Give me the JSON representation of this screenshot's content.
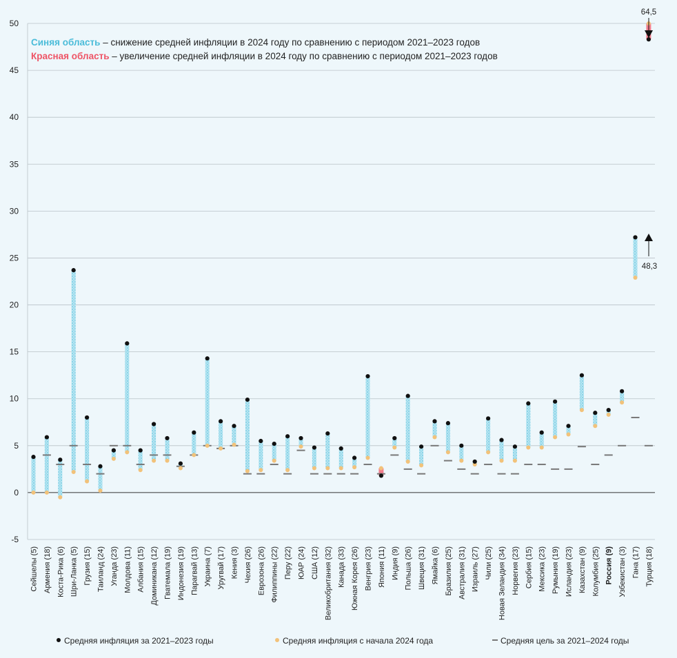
{
  "chart_data": {
    "type": "range-dot",
    "ylim": [
      -5,
      50
    ],
    "yticks": [
      "-5",
      "0",
      "5",
      "10",
      "15",
      "20",
      "25",
      "30",
      "35",
      "40",
      "45",
      "50"
    ],
    "notes": {
      "blue_title": "Синяя область",
      "blue_text": " – снижение средней инфляции в 2024 году по сравнению с периодом 2021–2023 годов",
      "red_title": "Красная область",
      "red_text": " – увеличение средней инфляции в 2024 году по сравнению с периодом 2021–2023 годов"
    },
    "legend": {
      "avg_2021_2023": "Средняя инфляция за 2021–2023 годы",
      "avg_2024": "Средняя инфляция с начала 2024 года",
      "target": "Средняя цель за 2021–2024 годы"
    },
    "annotations": {
      "top_value": "64,5",
      "bottom_value": "48,3"
    },
    "colors": {
      "blue_area": "#9fd9ea",
      "red_area": "#f27e8e",
      "dot_2021_2023": "#111111",
      "dot_2024": "#f2c27a",
      "target": "#777777",
      "background": "#eef7fb",
      "blue_title": "#4bbcd9",
      "red_title": "#ee5466"
    },
    "countries": [
      {
        "label": "Сейшелы (5)",
        "avg_2021_2023": 3.8,
        "avg_2024": 0.0,
        "target": null
      },
      {
        "label": "Армения (18)",
        "avg_2021_2023": 5.9,
        "avg_2024": 0.0,
        "target": 4.0
      },
      {
        "label": "Коста-Рика (6)",
        "avg_2021_2023": 3.5,
        "avg_2024": -0.5,
        "target": 3.0
      },
      {
        "label": "Шри-Ланка (5)",
        "avg_2021_2023": 23.7,
        "avg_2024": 2.2,
        "target": 5.0
      },
      {
        "label": "Грузия (15)",
        "avg_2021_2023": 8.0,
        "avg_2024": 1.2,
        "target": 3.0
      },
      {
        "label": "Таиланд (24)",
        "avg_2021_2023": 2.8,
        "avg_2024": 0.2,
        "target": 2.0
      },
      {
        "label": "Уганда (23)",
        "avg_2021_2023": 4.5,
        "avg_2024": 3.6,
        "target": 5.0
      },
      {
        "label": "Молдова (11)",
        "avg_2021_2023": 15.9,
        "avg_2024": 4.3,
        "target": 5.0
      },
      {
        "label": "Албания (15)",
        "avg_2021_2023": 4.5,
        "avg_2024": 2.4,
        "target": 3.0
      },
      {
        "label": "Доминикана (12)",
        "avg_2021_2023": 7.3,
        "avg_2024": 3.4,
        "target": 4.0
      },
      {
        "label": "Гватемала (19)",
        "avg_2021_2023": 5.8,
        "avg_2024": 3.4,
        "target": 4.0
      },
      {
        "label": "Индонезия (19)",
        "avg_2021_2023": 3.1,
        "avg_2024": 2.6,
        "target": 2.8
      },
      {
        "label": "Парагвай (13)",
        "avg_2021_2023": 6.4,
        "avg_2024": 4.0,
        "target": 4.0
      },
      {
        "label": "Украина (7)",
        "avg_2021_2023": 14.3,
        "avg_2024": 5.0,
        "target": 5.0
      },
      {
        "label": "Уругвай (17)",
        "avg_2021_2023": 7.6,
        "avg_2024": 4.7,
        "target": 4.7
      },
      {
        "label": "Кения (3)",
        "avg_2021_2023": 7.1,
        "avg_2024": 5.1,
        "target": 5.0
      },
      {
        "label": "Чехия (26)",
        "avg_2021_2023": 9.9,
        "avg_2024": 2.3,
        "target": 2.0
      },
      {
        "label": "Еврозона (26)",
        "avg_2021_2023": 5.5,
        "avg_2024": 2.4,
        "target": 2.0
      },
      {
        "label": "Филиппины (22)",
        "avg_2021_2023": 5.2,
        "avg_2024": 3.4,
        "target": 3.0
      },
      {
        "label": "Перу (22)",
        "avg_2021_2023": 6.0,
        "avg_2024": 2.4,
        "target": 2.0
      },
      {
        "label": "ЮАР (24)",
        "avg_2021_2023": 5.8,
        "avg_2024": 4.9,
        "target": 4.5
      },
      {
        "label": "США (12)",
        "avg_2021_2023": 4.8,
        "avg_2024": 2.6,
        "target": 2.0
      },
      {
        "label": "Великобритания (32)",
        "avg_2021_2023": 6.3,
        "avg_2024": 2.6,
        "target": 2.0
      },
      {
        "label": "Канада (33)",
        "avg_2021_2023": 4.7,
        "avg_2024": 2.6,
        "target": 2.0
      },
      {
        "label": "Южная Корея (26)",
        "avg_2021_2023": 3.7,
        "avg_2024": 2.7,
        "target": 2.0
      },
      {
        "label": "Венгрия (23)",
        "avg_2021_2023": 12.4,
        "avg_2024": 3.7,
        "target": 3.0
      },
      {
        "label": "Япония (11)",
        "avg_2021_2023": 1.8,
        "avg_2024": 2.6,
        "target": 2.0
      },
      {
        "label": "Индия (9)",
        "avg_2021_2023": 5.8,
        "avg_2024": 4.8,
        "target": 4.0
      },
      {
        "label": "Польша (26)",
        "avg_2021_2023": 10.3,
        "avg_2024": 3.3,
        "target": 2.5
      },
      {
        "label": "Швеция (31)",
        "avg_2021_2023": 4.9,
        "avg_2024": 2.9,
        "target": 2.0
      },
      {
        "label": "Ямайка (6)",
        "avg_2021_2023": 7.6,
        "avg_2024": 5.9,
        "target": 5.0
      },
      {
        "label": "Бразилия (25)",
        "avg_2021_2023": 7.4,
        "avg_2024": 4.3,
        "target": 3.4
      },
      {
        "label": "Австралия (31)",
        "avg_2021_2023": 5.0,
        "avg_2024": 3.4,
        "target": 2.5
      },
      {
        "label": "Израиль (27)",
        "avg_2021_2023": 3.3,
        "avg_2024": 3.0,
        "target": 2.0
      },
      {
        "label": "Чили (25)",
        "avg_2021_2023": 7.9,
        "avg_2024": 4.3,
        "target": 3.0
      },
      {
        "label": "Новая Зеландия (34)",
        "avg_2021_2023": 5.6,
        "avg_2024": 3.4,
        "target": 2.0
      },
      {
        "label": "Норвегия (23)",
        "avg_2021_2023": 4.9,
        "avg_2024": 3.4,
        "target": 2.0
      },
      {
        "label": "Сербия (15)",
        "avg_2021_2023": 9.5,
        "avg_2024": 4.8,
        "target": 3.0
      },
      {
        "label": "Мексика (23)",
        "avg_2021_2023": 6.4,
        "avg_2024": 4.8,
        "target": 3.0
      },
      {
        "label": "Румыния (19)",
        "avg_2021_2023": 9.7,
        "avg_2024": 5.9,
        "target": 2.5
      },
      {
        "label": "Исландия (23)",
        "avg_2021_2023": 7.1,
        "avg_2024": 6.2,
        "target": 2.5
      },
      {
        "label": "Казахстан (9)",
        "avg_2021_2023": 12.5,
        "avg_2024": 8.8,
        "target": 4.9
      },
      {
        "label": "Колумбия (25)",
        "avg_2021_2023": 8.5,
        "avg_2024": 7.1,
        "target": 3.0
      },
      {
        "label": "Россия (9)",
        "avg_2021_2023": 8.8,
        "avg_2024": 8.3,
        "target": 4.0
      },
      {
        "label": "Узбекистан (3)",
        "avg_2021_2023": 10.8,
        "avg_2024": 9.6,
        "target": 5.0
      },
      {
        "label": "Гана (17)",
        "avg_2021_2023": 27.2,
        "avg_2024": 22.9,
        "target": 8.0
      },
      {
        "label": "Турция (18)",
        "avg_2021_2023": 48.3,
        "avg_2024": 64.5,
        "target": 5.0
      }
    ],
    "bold_label": "Россия (9)"
  }
}
